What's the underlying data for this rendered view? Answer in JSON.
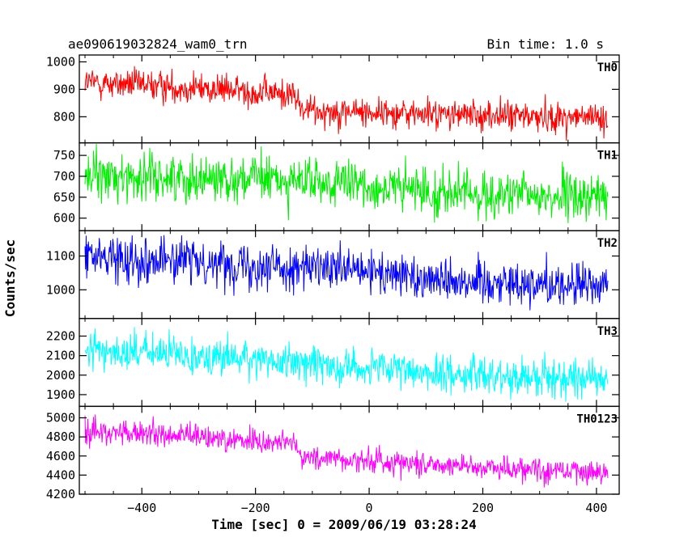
{
  "header": {
    "left": "ae090619032824_wam0_trn",
    "right": "Bin time: 1.0 s"
  },
  "chart_data": {
    "type": "line",
    "title": "ae090619032824_wam0_trn",
    "subtitle": "Bin time: 1.0 s",
    "xlabel": "Time [sec] 0 = 2009/06/19 03:28:24",
    "ylabel": "Counts/sec",
    "xlim": [
      -510,
      440
    ],
    "xticks": [
      -400,
      -200,
      0,
      200,
      400
    ],
    "xtick_labels": [
      "−400",
      "−200",
      "0",
      "200",
      "400"
    ],
    "x_start": -500,
    "x_end": 420,
    "bin": 1.0,
    "panels": [
      {
        "name": "TH0",
        "color": "#ff0000",
        "ylim": [
          705,
          1025
        ],
        "yticks": [
          800,
          900,
          1000
        ],
        "ytick_labels": [
          "800",
          "900",
          "1000"
        ],
        "level_points": [
          [
            -500,
            925
          ],
          [
            -300,
            905
          ],
          [
            -130,
            880
          ],
          [
            -120,
            825
          ],
          [
            100,
            810
          ],
          [
            420,
            795
          ]
        ],
        "noise": 28
      },
      {
        "name": "TH1",
        "color": "#00ee00",
        "ylim": [
          570,
          780
        ],
        "yticks": [
          600,
          650,
          700,
          750
        ],
        "ytick_labels": [
          "600",
          "650",
          "700",
          "750"
        ],
        "level_points": [
          [
            -500,
            700
          ],
          [
            -200,
            695
          ],
          [
            0,
            675
          ],
          [
            200,
            655
          ],
          [
            420,
            650
          ]
        ],
        "noise": 28
      },
      {
        "name": "TH2",
        "color": "#0000ff",
        "ylim": [
          915,
          1175
        ],
        "yticks": [
          1000,
          1100
        ],
        "ytick_labels": [
          "1000",
          "1100"
        ],
        "level_points": [
          [
            -500,
            1100
          ],
          [
            -200,
            1075
          ],
          [
            0,
            1050
          ],
          [
            200,
            1025
          ],
          [
            420,
            1010
          ]
        ],
        "noise": 33
      },
      {
        "name": "TH3",
        "color": "#00ffff",
        "ylim": [
          1840,
          2290
        ],
        "yticks": [
          1900,
          2000,
          2100,
          2200
        ],
        "ytick_labels": [
          "1900",
          "2000",
          "2100",
          "2200"
        ],
        "level_points": [
          [
            -500,
            2130
          ],
          [
            -300,
            2100
          ],
          [
            -100,
            2060
          ],
          [
            100,
            2010
          ],
          [
            420,
            1980
          ]
        ],
        "noise": 48
      },
      {
        "name": "TH0123",
        "color": "#ff00ff",
        "ylim": [
          4200,
          5120
        ],
        "yticks": [
          4200,
          4400,
          4600,
          4800,
          5000
        ],
        "ytick_labels": [
          "4200",
          "4400",
          "4600",
          "4800",
          "5000"
        ],
        "level_points": [
          [
            -500,
            4860
          ],
          [
            -300,
            4800
          ],
          [
            -130,
            4730
          ],
          [
            -120,
            4590
          ],
          [
            100,
            4520
          ],
          [
            420,
            4420
          ]
        ],
        "noise": 65
      }
    ]
  }
}
